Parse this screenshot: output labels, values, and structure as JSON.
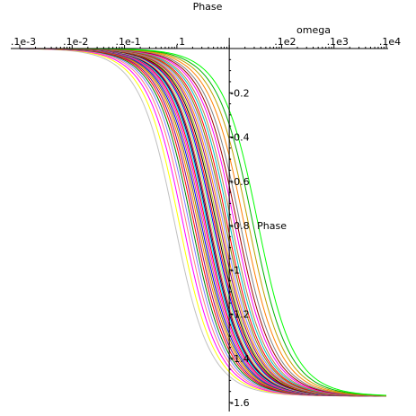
{
  "chart_data": {
    "type": "line",
    "title": "Phase",
    "xlabel": "omega",
    "ylabel": "Phase",
    "x_scale": "log",
    "xlim": [
      0.001,
      10000
    ],
    "ylim": [
      -1.6,
      0
    ],
    "grid": false,
    "x_ticks": [
      {
        "value": 0.001,
        "label": ".1e-3"
      },
      {
        "value": 0.01,
        "label": ".1e-2"
      },
      {
        "value": 0.1,
        "label": ".1e-1"
      },
      {
        "value": 1,
        "label": ".1"
      },
      {
        "value": 100,
        "label": ".1e2"
      },
      {
        "value": 1000,
        "label": ".1e3"
      },
      {
        "value": 10000,
        "label": ".1e4"
      }
    ],
    "y_ticks": [
      {
        "value": -0.2,
        "label": "-0.2"
      },
      {
        "value": -0.4,
        "label": "-0.4"
      },
      {
        "value": -0.6,
        "label": "-0.6"
      },
      {
        "value": -0.8,
        "label": "-0.8"
      },
      {
        "value": -1.0,
        "label": "-1"
      },
      {
        "value": -1.2,
        "label": "-1.2"
      },
      {
        "value": -1.4,
        "label": "-1.4"
      },
      {
        "value": -1.6,
        "label": "-1.6"
      }
    ],
    "y_axis_crosses_x_at": 10,
    "x_axis_crosses_y_at": 0,
    "curve_model": "phase(omega) = -arctan(omega / corner)",
    "series": [
      {
        "corner": 0.9,
        "color": "#c0c0c0"
      },
      {
        "corner": 1.1,
        "color": "#ffff00"
      },
      {
        "corner": 1.3,
        "color": "#ff00ff"
      },
      {
        "corner": 1.5,
        "color": "#ff8080"
      },
      {
        "corner": 1.7,
        "color": "#8080ff"
      },
      {
        "corner": 1.9,
        "color": "#008000"
      },
      {
        "corner": 2.1,
        "color": "#ff0000"
      },
      {
        "corner": 2.3,
        "color": "#800080"
      },
      {
        "corner": 2.5,
        "color": "#ff8000"
      },
      {
        "corner": 2.7,
        "color": "#808000"
      },
      {
        "corner": 2.9,
        "color": "#0000ff"
      },
      {
        "corner": 3.1,
        "color": "#c08040"
      },
      {
        "corner": 3.3,
        "color": "#ff00ff"
      },
      {
        "corner": 3.5,
        "color": "#ff0000"
      },
      {
        "corner": 3.7,
        "color": "#00ffff"
      },
      {
        "corner": 3.9,
        "color": "#000080"
      },
      {
        "corner": 4.1,
        "color": "#800000"
      },
      {
        "corner": 4.3,
        "color": "#ff8080"
      },
      {
        "corner": 4.6,
        "color": "#80ff80"
      },
      {
        "corner": 4.9,
        "color": "#0000ff"
      },
      {
        "corner": 5.2,
        "color": "#ff0000"
      },
      {
        "corner": 5.6,
        "color": "#000000"
      },
      {
        "corner": 6.0,
        "color": "#c0c000"
      },
      {
        "corner": 6.5,
        "color": "#800080"
      },
      {
        "corner": 7.0,
        "color": "#ff8000"
      },
      {
        "corner": 7.6,
        "color": "#8080ff"
      },
      {
        "corner": 8.3,
        "color": "#808000"
      },
      {
        "corner": 9.0,
        "color": "#ff0000"
      },
      {
        "corner": 10,
        "color": "#00c0c0"
      },
      {
        "corner": 11,
        "color": "#c08040"
      },
      {
        "corner": 12.5,
        "color": "#ff00ff"
      },
      {
        "corner": 14,
        "color": "#a00000"
      },
      {
        "corner": 16,
        "color": "#808080"
      },
      {
        "corner": 19,
        "color": "#ff8000"
      },
      {
        "corner": 23,
        "color": "#c0a000"
      },
      {
        "corner": 28,
        "color": "#00b000"
      },
      {
        "corner": 35,
        "color": "#00ff00"
      }
    ]
  }
}
